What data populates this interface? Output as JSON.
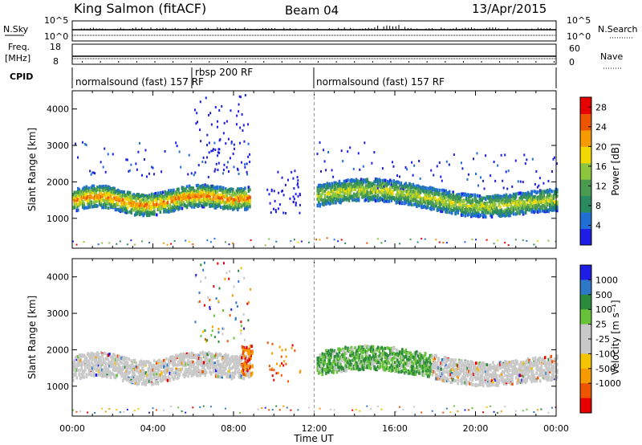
{
  "header": {
    "station": "King Salmon (fitACF)",
    "beam": "Beam 04",
    "date": "13/Apr/2015"
  },
  "side_labels": {
    "nsky": "N.Sky",
    "nsearch": "N.Search",
    "freq_line1": "Freq.",
    "freq_line2": "[MHz]",
    "nave": "Nave",
    "cpid": "CPID"
  },
  "mini_axes": {
    "noise_left_top": "10^5",
    "noise_left_bottom": "10^0",
    "noise_right_top": "10^5",
    "noise_right_bottom": "10^0",
    "freq_top": "18",
    "freq_bottom": "8",
    "nave_top": "60",
    "nave_bottom": "0"
  },
  "cpid_segments": [
    {
      "label": "normalsound (fast) 157 RF"
    },
    {
      "label": "rbsp 200 RF"
    },
    {
      "label": "normalsound (fast) 157 RF"
    }
  ],
  "colors": {
    "power_scale": [
      "#1e1ee6",
      "#1f6fd6",
      "#2a8a62",
      "#4a9a50",
      "#8cc63f",
      "#f0d800",
      "#f59b00",
      "#ee5500",
      "#e60000"
    ],
    "velocity_scale": [
      "#e60000",
      "#ee5500",
      "#f59b00",
      "#f5c400",
      "#c8c8c8",
      "#c8c8c8",
      "#67c23a",
      "#2a8a3a",
      "#2e78c8",
      "#1e1ee6"
    ]
  },
  "chart_data": [
    {
      "type": "heatmap",
      "title": "Power",
      "xlabel": "Time UT",
      "ylabel": "Slant Range [km]",
      "x_ticks": [
        "00:00",
        "04:00",
        "08:00",
        "12:00",
        "16:00",
        "20:00",
        "00:00"
      ],
      "y_ticks": [
        1000,
        2000,
        3000,
        4000
      ],
      "ylim": [
        180,
        4500
      ],
      "xlim_hours": [
        0,
        24
      ],
      "colorbar": {
        "label": "Power [dB]",
        "ticks": [
          4,
          8,
          12,
          16,
          20,
          24,
          28
        ],
        "range": [
          0,
          30
        ]
      },
      "features": [
        {
          "name": "main band",
          "t_start_h": 0,
          "t_end_h": 8.6,
          "range_km": [
            1200,
            2000
          ]
        },
        {
          "name": "secondary band",
          "t_start_h": 12.1,
          "t_end_h": 24,
          "range_km": [
            1300,
            2400
          ]
        }
      ]
    },
    {
      "type": "heatmap",
      "title": "Velocity",
      "xlabel": "Time UT",
      "ylabel": "Slant Range [km]",
      "x_ticks": [
        "00:00",
        "04:00",
        "08:00",
        "12:00",
        "16:00",
        "20:00",
        "00:00"
      ],
      "y_ticks": [
        1000,
        2000,
        3000,
        4000
      ],
      "ylim": [
        180,
        4500
      ],
      "xlim_hours": [
        0,
        24
      ],
      "colorbar": {
        "label": "Velocity [m s⁻¹]",
        "ticks": [
          1000,
          500,
          100,
          25,
          -25,
          -100,
          -500,
          -1000
        ]
      },
      "features": [
        {
          "name": "ground scatter band",
          "t_start_h": 0,
          "t_end_h": 8.5,
          "velocity_ms": [
            -25,
            25
          ]
        },
        {
          "name": "red echoes",
          "t_start_h": 8.4,
          "t_end_h": 8.9,
          "velocity_ms": [
            -1000,
            -500
          ]
        },
        {
          "name": "green echoes",
          "t_start_h": 12.1,
          "t_end_h": 17.8,
          "velocity_ms": [
            100,
            500
          ]
        }
      ]
    }
  ]
}
